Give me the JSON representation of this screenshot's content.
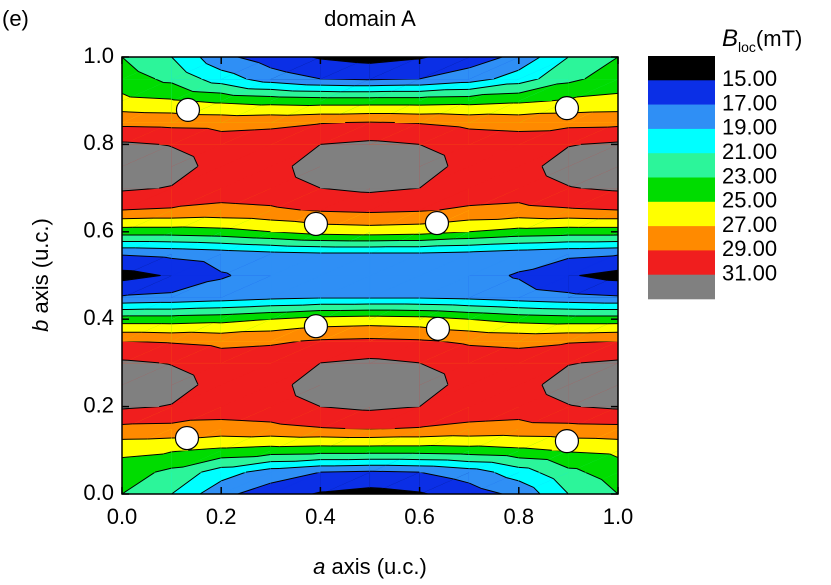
{
  "panel_label": "(e)",
  "chart_data": {
    "type": "contour",
    "title": "domain A",
    "xlabel": {
      "symbol": "a",
      "text": "axis (u.c.)"
    },
    "ylabel": {
      "symbol": "b",
      "text": "axis (u.c.)"
    },
    "colorbar": {
      "symbol": "B",
      "subscript": "loc",
      "unit": "(mT)",
      "levels": [
        {
          "value": 15,
          "label": "15.00"
        },
        {
          "value": 17,
          "label": "17.00"
        },
        {
          "value": 19,
          "label": "19.00"
        },
        {
          "value": 21,
          "label": "21.00"
        },
        {
          "value": 23,
          "label": "23.00"
        },
        {
          "value": 25,
          "label": "25.00"
        },
        {
          "value": 27,
          "label": "27.00"
        },
        {
          "value": 29,
          "label": "29.00"
        },
        {
          "value": 31,
          "label": "31.00"
        }
      ],
      "colors": [
        "#000000",
        "#0b2fe6",
        "#2f8ff5",
        "#00ffff",
        "#2cf59a",
        "#00dc00",
        "#ffff00",
        "#ff8a00",
        "#f01e1e",
        "#808080"
      ]
    },
    "x": [
      0,
      0.1,
      0.2,
      0.3,
      0.4,
      0.5,
      0.6,
      0.7,
      0.8,
      0.9,
      1
    ],
    "y": [
      0,
      0.05,
      0.1,
      0.15,
      0.2,
      0.25,
      0.3,
      0.35,
      0.4,
      0.45,
      0.5,
      0.55,
      0.6,
      0.65,
      0.7,
      0.75,
      0.8,
      0.85,
      0.9,
      0.95,
      1
    ],
    "z": [
      [
        23,
        21,
        17.5,
        16,
        14.8,
        14.3,
        14.8,
        16,
        17.5,
        21,
        23
      ],
      [
        24,
        22.5,
        20,
        18,
        17,
        16.7,
        17,
        18,
        20,
        22.5,
        24
      ],
      [
        25.5,
        25.2,
        24.6,
        24.2,
        24,
        24,
        24,
        24.2,
        24.6,
        25.2,
        25.5
      ],
      [
        28.5,
        28.4,
        28.3,
        28.5,
        28.9,
        29.1,
        28.9,
        28.5,
        28.3,
        28.4,
        28.5
      ],
      [
        31.3,
        30.9,
        30,
        30.2,
        31,
        31.4,
        31,
        30.2,
        30,
        30.9,
        31.3
      ],
      [
        32.5,
        31.8,
        30.3,
        30.4,
        31.8,
        32.5,
        31.8,
        30.4,
        30.3,
        31.8,
        32.5
      ],
      [
        31.3,
        30.9,
        30,
        30.2,
        31,
        31.4,
        31,
        30.2,
        30,
        30.9,
        31.3
      ],
      [
        29,
        28.8,
        28.5,
        28.7,
        29.2,
        29.4,
        29.2,
        28.7,
        28.5,
        28.8,
        29
      ],
      [
        24,
        24,
        24.3,
        25,
        25.8,
        26,
        25.8,
        25,
        24.3,
        24,
        24
      ],
      [
        17.2,
        17.5,
        18,
        18.5,
        18.8,
        18.8,
        18.8,
        18.5,
        18,
        17.5,
        17.2
      ],
      [
        14.3,
        15.2,
        16.8,
        17.8,
        18.2,
        18.3,
        18.2,
        17.8,
        16.8,
        15.2,
        14.3
      ],
      [
        17.2,
        17.5,
        18,
        18.5,
        18.8,
        18.8,
        18.8,
        18.5,
        18,
        17.5,
        17.2
      ],
      [
        24,
        24,
        24.3,
        25,
        25.8,
        26,
        25.8,
        25,
        24.3,
        24,
        24
      ],
      [
        29,
        28.8,
        28.5,
        28.7,
        29.2,
        29.4,
        29.2,
        28.7,
        28.5,
        28.8,
        29
      ],
      [
        31.3,
        30.9,
        30,
        30.2,
        31,
        31.4,
        31,
        30.2,
        30,
        30.9,
        31.3
      ],
      [
        32.5,
        31.8,
        30.3,
        30.4,
        31.8,
        32.5,
        31.8,
        30.4,
        30.3,
        31.8,
        32.5
      ],
      [
        31.3,
        30.9,
        30,
        30.2,
        31,
        31.4,
        31,
        30.2,
        30,
        30.9,
        31.3
      ],
      [
        28.5,
        28.4,
        28.3,
        28.5,
        28.9,
        29.1,
        28.9,
        28.5,
        28.3,
        28.4,
        28.5
      ],
      [
        25.5,
        25.2,
        24.6,
        24.2,
        24,
        24,
        24,
        24.2,
        24.6,
        25.2,
        25.5
      ],
      [
        24,
        22.5,
        20,
        18,
        17,
        16.7,
        17,
        18,
        20,
        22.5,
        24
      ],
      [
        23,
        21,
        17.5,
        16,
        14.8,
        14.3,
        14.8,
        16,
        17.5,
        21,
        23
      ]
    ],
    "xlim": [
      0,
      1
    ],
    "ylim": [
      0,
      1
    ],
    "xticks": [
      {
        "value": 0,
        "label": "0.0"
      },
      {
        "value": 0.2,
        "label": "0.2"
      },
      {
        "value": 0.4,
        "label": "0.4"
      },
      {
        "value": 0.6,
        "label": "0.6"
      },
      {
        "value": 0.8,
        "label": "0.8"
      },
      {
        "value": 1,
        "label": "1.0"
      }
    ],
    "yticks": [
      {
        "value": 0,
        "label": "0.0"
      },
      {
        "value": 0.2,
        "label": "0.2"
      },
      {
        "value": 0.4,
        "label": "0.4"
      },
      {
        "value": 0.6,
        "label": "0.6"
      },
      {
        "value": 0.8,
        "label": "0.8"
      },
      {
        "value": 1,
        "label": "1.0"
      }
    ],
    "markers": {
      "x": [
        0.133,
        0.897,
        0.391,
        0.635,
        0.391,
        0.637,
        0.131,
        0.897
      ],
      "y": [
        0.879,
        0.883,
        0.618,
        0.62,
        0.384,
        0.378,
        0.128,
        0.121
      ],
      "color": "#ffffff"
    }
  }
}
